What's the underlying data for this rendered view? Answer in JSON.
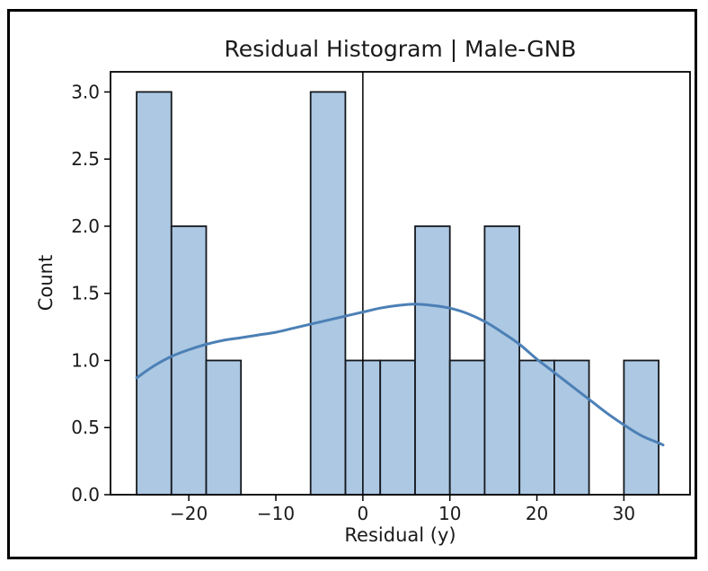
{
  "figure": {
    "title": "Residual Histogram | Male-GNB",
    "xlabel": "Residual (y)",
    "ylabel": "Count"
  },
  "chart_data": {
    "type": "bar",
    "subtype": "histogram-with-kde",
    "title": "Residual Histogram | Male-GNB",
    "xlabel": "Residual (y)",
    "ylabel": "Count",
    "grid": false,
    "legend": null,
    "xlim": [
      -29,
      37.6
    ],
    "ylim": [
      0,
      3.15
    ],
    "x_ticks": {
      "values": [
        -20,
        -10,
        0,
        10,
        20,
        30
      ],
      "labels": [
        "−20",
        "−10",
        "0",
        "10",
        "20",
        "30"
      ]
    },
    "y_ticks": {
      "values": [
        0,
        0.5,
        1,
        1.5,
        2,
        2.5,
        3
      ],
      "labels": [
        "0.0",
        "0.5",
        "1.0",
        "1.5",
        "2.0",
        "2.5",
        "3.0"
      ]
    },
    "bin_edges": [
      -26,
      -22,
      -18,
      -14,
      -10,
      -6,
      -2,
      2,
      6,
      10,
      14,
      18,
      22,
      26,
      30,
      34
    ],
    "counts": [
      3,
      2,
      1,
      0,
      0,
      3,
      1,
      1,
      2,
      1,
      2,
      1,
      1,
      0,
      1
    ],
    "reference_vline_x": 0,
    "kde_line": {
      "x": [
        -26,
        -24,
        -22,
        -20,
        -18,
        -16,
        -14,
        -12,
        -10,
        -8,
        -6,
        -4,
        -2,
        0,
        2,
        4,
        6,
        8,
        10,
        12,
        14,
        16,
        18,
        20,
        22,
        24,
        26,
        28,
        30,
        32,
        34,
        34.5
      ],
      "y": [
        0.87,
        0.96,
        1.03,
        1.08,
        1.12,
        1.15,
        1.17,
        1.19,
        1.21,
        1.24,
        1.27,
        1.3,
        1.33,
        1.36,
        1.39,
        1.41,
        1.42,
        1.41,
        1.39,
        1.35,
        1.29,
        1.21,
        1.12,
        1.01,
        0.91,
        0.81,
        0.71,
        0.61,
        0.52,
        0.44,
        0.385,
        0.37
      ]
    },
    "colors": {
      "bar_fill": "#acc8e3",
      "bar_edge": "#15181d",
      "kde_line": "#4c80b6",
      "vline": "#000000",
      "spine": "#000000",
      "text": "#1a1a1a",
      "background": "#ffffff",
      "frame_border": "#000000"
    }
  }
}
